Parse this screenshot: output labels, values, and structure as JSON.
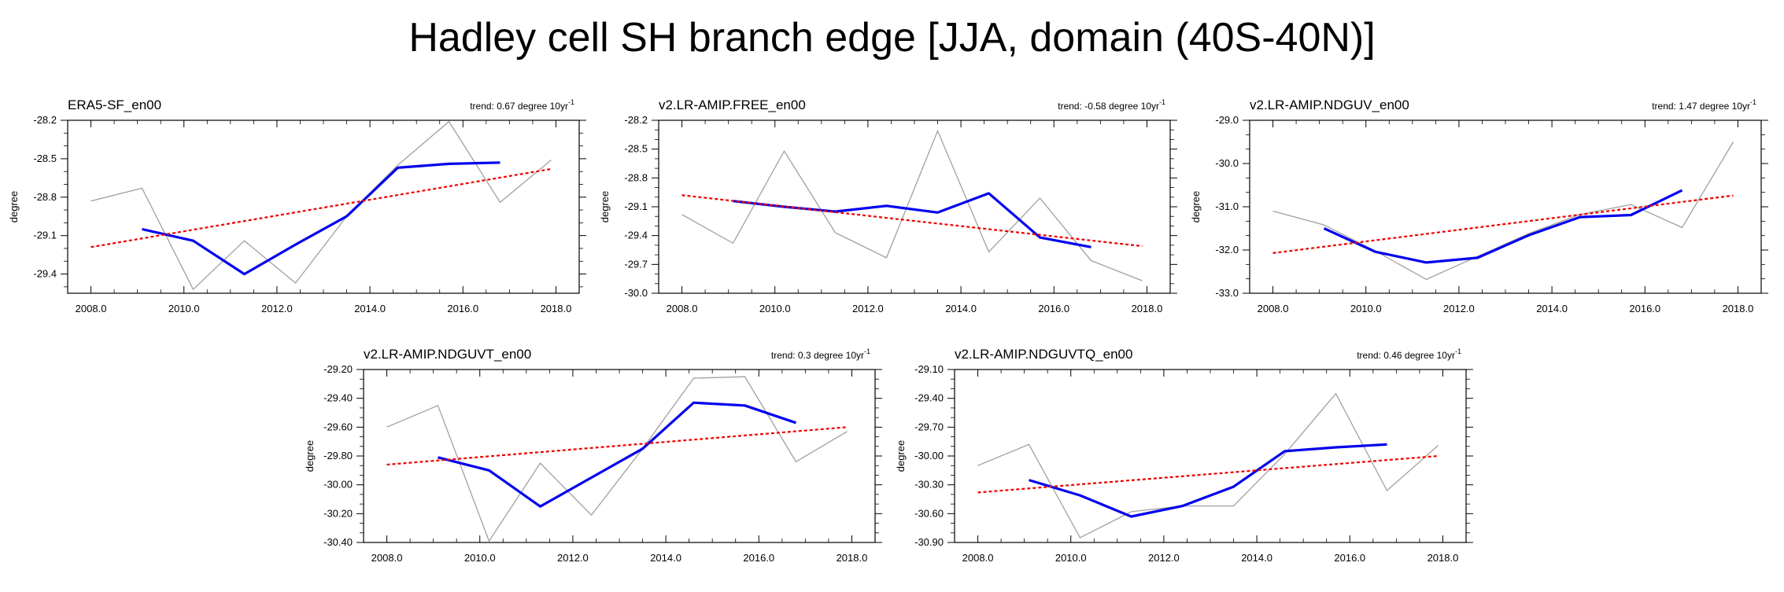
{
  "title": "Hadley cell SH branch edge [JJA, domain (40S-40N)]",
  "colors": {
    "raw": "#a0a0a0",
    "smooth": "#0000ee",
    "trend": "#ee0000",
    "frame": "#000000"
  },
  "chart_data": [
    {
      "type": "line",
      "title": "ERA5-SF_en00",
      "trend_label": "trend: 0.67 degree 10yr",
      "trend_sup": "-1",
      "ylabel": "degree",
      "xlim": [
        2007.5,
        2018.5
      ],
      "ylim": [
        -29.55,
        -28.2
      ],
      "xticks": [
        2008,
        2010,
        2012,
        2014,
        2016,
        2018
      ],
      "xtick_labels": [
        "2008.0",
        "2010.0",
        "2012.0",
        "2014.0",
        "2016.0",
        "2018.0"
      ],
      "yticks": [
        -28.2,
        -28.5,
        -28.8,
        -29.1,
        -29.4
      ],
      "ytick_labels": [
        "-28.2",
        "-28.5",
        "-28.8",
        "-29.1",
        "-29.4"
      ],
      "series": [
        {
          "role": "raw",
          "x": [
            2008,
            2009.1,
            2010.2,
            2011.3,
            2012.4,
            2013.5,
            2014.6,
            2015.7,
            2016.8,
            2017.9
          ],
          "y": [
            -28.83,
            -28.73,
            -29.52,
            -29.14,
            -29.47,
            -28.95,
            -28.55,
            -28.21,
            -28.84,
            -28.51
          ]
        },
        {
          "role": "smooth",
          "x": [
            2009.1,
            2010.2,
            2011.3,
            2012.4,
            2013.5,
            2014.6,
            2015.7,
            2016.8
          ],
          "y": [
            -29.05,
            -29.14,
            -29.4,
            -29.17,
            -28.95,
            -28.57,
            -28.54,
            -28.53
          ]
        },
        {
          "role": "trend",
          "x": [
            2008,
            2017.9
          ],
          "y": [
            -29.19,
            -28.58
          ]
        }
      ]
    },
    {
      "type": "line",
      "title": "v2.LR-AMIP.FREE_en00",
      "trend_label": "trend: -0.58 degree 10yr",
      "trend_sup": "-1",
      "ylabel": "degree",
      "xlim": [
        2007.5,
        2018.5
      ],
      "ylim": [
        -30.0,
        -28.2
      ],
      "xticks": [
        2008,
        2010,
        2012,
        2014,
        2016,
        2018
      ],
      "xtick_labels": [
        "2008.0",
        "2010.0",
        "2012.0",
        "2014.0",
        "2016.0",
        "2018.0"
      ],
      "yticks": [
        -28.2,
        -28.5,
        -28.8,
        -29.1,
        -29.4,
        -29.7,
        -30.0
      ],
      "ytick_labels": [
        "-28.2",
        "-28.5",
        "-28.8",
        "-29.1",
        "-29.4",
        "-29.7",
        "-30.0"
      ],
      "series": [
        {
          "role": "raw",
          "x": [
            2008,
            2009.1,
            2010.2,
            2011.3,
            2012.4,
            2013.5,
            2014.6,
            2015.7,
            2016.8,
            2017.9
          ],
          "y": [
            -29.18,
            -29.48,
            -28.52,
            -29.37,
            -29.63,
            -28.31,
            -29.57,
            -29.01,
            -29.66,
            -29.87
          ]
        },
        {
          "role": "smooth",
          "x": [
            2009.1,
            2010.2,
            2011.3,
            2012.4,
            2013.5,
            2014.6,
            2015.7,
            2016.8
          ],
          "y": [
            -29.04,
            -29.1,
            -29.15,
            -29.09,
            -29.16,
            -28.96,
            -29.42,
            -29.52
          ]
        },
        {
          "role": "trend",
          "x": [
            2008,
            2017.9
          ],
          "y": [
            -28.98,
            -29.51
          ]
        }
      ]
    },
    {
      "type": "line",
      "title": "v2.LR-AMIP.NDGUV_en00",
      "trend_label": "trend: 1.47 degree 10yr",
      "trend_sup": "-1",
      "ylabel": "degree",
      "xlim": [
        2007.5,
        2018.5
      ],
      "ylim": [
        -33.0,
        -29.0
      ],
      "xticks": [
        2008,
        2010,
        2012,
        2014,
        2016,
        2018
      ],
      "xtick_labels": [
        "2008.0",
        "2010.0",
        "2012.0",
        "2014.0",
        "2016.0",
        "2018.0"
      ],
      "yticks": [
        -29.0,
        -30.0,
        -31.0,
        -32.0,
        -33.0
      ],
      "ytick_labels": [
        "-29.0",
        "-30.0",
        "-31.0",
        "-32.0",
        "-33.0"
      ],
      "series": [
        {
          "role": "raw",
          "x": [
            2008,
            2009.1,
            2010.2,
            2011.3,
            2012.4,
            2013.5,
            2014.6,
            2015.7,
            2016.8,
            2017.9
          ],
          "y": [
            -31.1,
            -31.42,
            -32.02,
            -32.68,
            -32.15,
            -31.62,
            -31.18,
            -30.95,
            -31.48,
            -29.5
          ]
        },
        {
          "role": "smooth",
          "x": [
            2009.1,
            2010.2,
            2011.3,
            2012.4,
            2013.5,
            2014.6,
            2015.7,
            2016.8
          ],
          "y": [
            -31.5,
            -32.04,
            -32.29,
            -32.18,
            -31.66,
            -31.24,
            -31.19,
            -30.62
          ]
        },
        {
          "role": "trend",
          "x": [
            2008,
            2017.9
          ],
          "y": [
            -32.07,
            -30.74
          ]
        }
      ]
    },
    {
      "type": "line",
      "title": "v2.LR-AMIP.NDGUVT_en00",
      "trend_label": "trend: 0.3 degree 10yr",
      "trend_sup": "-1",
      "ylabel": "degree",
      "xlim": [
        2007.5,
        2018.5
      ],
      "ylim": [
        -30.4,
        -29.2
      ],
      "xticks": [
        2008,
        2010,
        2012,
        2014,
        2016,
        2018
      ],
      "xtick_labels": [
        "2008.0",
        "2010.0",
        "2012.0",
        "2014.0",
        "2016.0",
        "2018.0"
      ],
      "yticks": [
        -29.2,
        -29.4,
        -29.6,
        -29.8,
        -30.0,
        -30.2,
        -30.4
      ],
      "ytick_labels": [
        "-29.20",
        "-29.40",
        "-29.60",
        "-29.80",
        "-30.00",
        "-30.20",
        "-30.40"
      ],
      "series": [
        {
          "role": "raw",
          "x": [
            2008,
            2009.1,
            2010.2,
            2011.3,
            2012.4,
            2013.5,
            2014.6,
            2015.7,
            2016.8,
            2017.9
          ],
          "y": [
            -29.6,
            -29.45,
            -30.39,
            -29.85,
            -30.21,
            -29.75,
            -29.26,
            -29.25,
            -29.84,
            -29.63
          ]
        },
        {
          "role": "smooth",
          "x": [
            2009.1,
            2010.2,
            2011.3,
            2012.4,
            2013.5,
            2014.6,
            2015.7,
            2016.8
          ],
          "y": [
            -29.81,
            -29.9,
            -30.15,
            -29.95,
            -29.75,
            -29.43,
            -29.45,
            -29.57
          ]
        },
        {
          "role": "trend",
          "x": [
            2008,
            2017.9
          ],
          "y": [
            -29.86,
            -29.6
          ]
        }
      ]
    },
    {
      "type": "line",
      "title": "v2.LR-AMIP.NDGUVTQ_en00",
      "trend_label": "trend: 0.46 degree 10yr",
      "trend_sup": "-1",
      "ylabel": "degree",
      "xlim": [
        2007.5,
        2018.5
      ],
      "ylim": [
        -30.9,
        -29.1
      ],
      "xticks": [
        2008,
        2010,
        2012,
        2014,
        2016,
        2018
      ],
      "xtick_labels": [
        "2008.0",
        "2010.0",
        "2012.0",
        "2014.0",
        "2016.0",
        "2018.0"
      ],
      "yticks": [
        -29.1,
        -29.4,
        -29.7,
        -30.0,
        -30.3,
        -30.6,
        -30.9
      ],
      "ytick_labels": [
        "-29.10",
        "-29.40",
        "-29.70",
        "-30.00",
        "-30.30",
        "-30.60",
        "-30.90"
      ],
      "series": [
        {
          "role": "raw",
          "x": [
            2008,
            2009.1,
            2010.2,
            2011.3,
            2012.4,
            2013.5,
            2014.6,
            2015.7,
            2016.8,
            2017.9
          ],
          "y": [
            -30.1,
            -29.88,
            -30.85,
            -30.58,
            -30.52,
            -30.52,
            -29.98,
            -29.35,
            -30.36,
            -29.89
          ]
        },
        {
          "role": "smooth",
          "x": [
            2009.1,
            2010.2,
            2011.3,
            2012.4,
            2013.5,
            2014.6,
            2015.7,
            2016.8
          ],
          "y": [
            -30.25,
            -30.41,
            -30.63,
            -30.52,
            -30.32,
            -29.95,
            -29.91,
            -29.88
          ]
        },
        {
          "role": "trend",
          "x": [
            2008,
            2017.9
          ],
          "y": [
            -30.38,
            -30.0
          ]
        }
      ]
    }
  ]
}
